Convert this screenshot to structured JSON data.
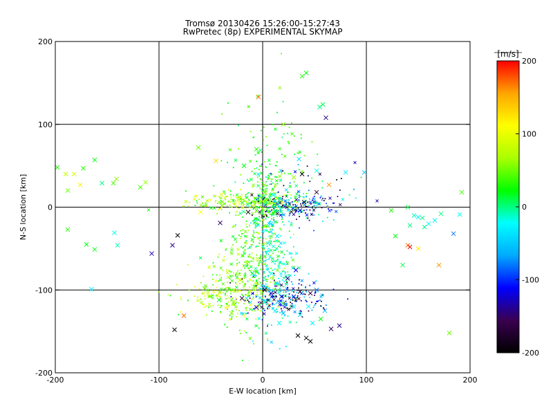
{
  "chart_data": {
    "type": "scatter",
    "title": "Tromsø 20130426 15:26:00-15:27:43",
    "subtitle": "RwPretec (8p) EXPERIMENTAL SKYMAP",
    "xlabel": "E-W location [km]",
    "ylabel": "N-S location [km]",
    "xlim": [
      -200,
      200
    ],
    "ylim": [
      -200,
      200
    ],
    "xticks": [
      "-200",
      "-100",
      "0",
      "100",
      "200"
    ],
    "yticks": [
      "-200",
      "-100",
      "0",
      "100",
      "200"
    ],
    "grid_lines_x": [
      -100,
      0,
      100
    ],
    "grid_lines_y": [
      -100,
      0,
      100
    ],
    "grid": true,
    "colorbar": {
      "label": "[m/s]",
      "range": [
        -200,
        200
      ],
      "ticks": [
        "200",
        "100",
        "0",
        "-100",
        "-200"
      ],
      "colormap": [
        "#000000",
        "#3a0050",
        "#0000ff",
        "#00aaff",
        "#00ffff",
        "#00ff00",
        "#aaff00",
        "#ffff00",
        "#ffa500",
        "#ff0000"
      ]
    },
    "markers": {
      "cross": "measured drift (large x)",
      "dot": "measured drift (small point)"
    },
    "points_large": [
      {
        "x": -198,
        "y": 48,
        "v": 30
      },
      {
        "x": -190,
        "y": 40,
        "v": 80
      },
      {
        "x": -182,
        "y": 40,
        "v": 90
      },
      {
        "x": -176,
        "y": 27,
        "v": 120
      },
      {
        "x": -173,
        "y": 47,
        "v": 30
      },
      {
        "x": -188,
        "y": 20,
        "v": 50
      },
      {
        "x": -162,
        "y": 57,
        "v": 20
      },
      {
        "x": -155,
        "y": 29,
        "v": 0
      },
      {
        "x": -144,
        "y": 29,
        "v": 40
      },
      {
        "x": -141,
        "y": 34,
        "v": 60
      },
      {
        "x": -118,
        "y": 24,
        "v": 40
      },
      {
        "x": -113,
        "y": 30,
        "v": 60
      },
      {
        "x": -188,
        "y": -27,
        "v": 30
      },
      {
        "x": -170,
        "y": -45,
        "v": 20
      },
      {
        "x": -162,
        "y": -51,
        "v": 20
      },
      {
        "x": -143,
        "y": -31,
        "v": -20
      },
      {
        "x": -140,
        "y": -46,
        "v": -10
      },
      {
        "x": -165,
        "y": -99,
        "v": -30
      },
      {
        "x": -107,
        "y": -56,
        "v": -130
      },
      {
        "x": -87,
        "y": -46,
        "v": -140
      },
      {
        "x": -82,
        "y": -34,
        "v": -200
      },
      {
        "x": -76,
        "y": -131,
        "v": 170
      },
      {
        "x": -85,
        "y": -148,
        "v": -200
      },
      {
        "x": -62,
        "y": 72,
        "v": 50
      },
      {
        "x": -45,
        "y": 56,
        "v": 130
      },
      {
        "x": -40,
        "y": 15,
        "v": 100
      },
      {
        "x": -60,
        "y": -6,
        "v": 110
      },
      {
        "x": -41,
        "y": -19,
        "v": -150
      },
      {
        "x": -18,
        "y": 50,
        "v": 20
      },
      {
        "x": -6,
        "y": 70,
        "v": 30
      },
      {
        "x": -4,
        "y": 133,
        "v": 170
      },
      {
        "x": 20,
        "y": 100,
        "v": 60
      },
      {
        "x": 38,
        "y": 158,
        "v": 30
      },
      {
        "x": 42,
        "y": 162,
        "v": 20
      },
      {
        "x": 55,
        "y": 121,
        "v": 0
      },
      {
        "x": 58,
        "y": 124,
        "v": 10
      },
      {
        "x": 61,
        "y": 108,
        "v": -140
      },
      {
        "x": 35,
        "y": 58,
        "v": -40
      },
      {
        "x": 52,
        "y": 44,
        "v": -20
      },
      {
        "x": 38,
        "y": 40,
        "v": -200
      },
      {
        "x": 30,
        "y": 36,
        "v": 60
      },
      {
        "x": 52,
        "y": 18,
        "v": -170
      },
      {
        "x": 64,
        "y": 27,
        "v": 160
      },
      {
        "x": 40,
        "y": 6,
        "v": -200
      },
      {
        "x": 36,
        "y": -4,
        "v": -120
      },
      {
        "x": 80,
        "y": 42,
        "v": -30
      },
      {
        "x": 8,
        "y": -20,
        "v": -40
      },
      {
        "x": -14,
        "y": -6,
        "v": -200
      },
      {
        "x": 14,
        "y": -35,
        "v": -30
      },
      {
        "x": 32,
        "y": -76,
        "v": -110
      },
      {
        "x": 24,
        "y": -86,
        "v": -140
      },
      {
        "x": 2,
        "y": -115,
        "v": -10
      },
      {
        "x": 12,
        "y": -125,
        "v": -30
      },
      {
        "x": 20,
        "y": -128,
        "v": -60
      },
      {
        "x": 30,
        "y": -108,
        "v": -120
      },
      {
        "x": 36,
        "y": -102,
        "v": -190
      },
      {
        "x": 46,
        "y": -104,
        "v": -160
      },
      {
        "x": 52,
        "y": -100,
        "v": -80
      },
      {
        "x": 18,
        "y": -108,
        "v": -100
      },
      {
        "x": 8,
        "y": -104,
        "v": -130
      },
      {
        "x": -6,
        "y": -121,
        "v": -140
      },
      {
        "x": -20,
        "y": -110,
        "v": -160
      },
      {
        "x": -30,
        "y": -128,
        "v": 60
      },
      {
        "x": -42,
        "y": -112,
        "v": 20
      },
      {
        "x": 2,
        "y": -100,
        "v": -170
      },
      {
        "x": 16,
        "y": -140,
        "v": -20
      },
      {
        "x": 30,
        "y": -120,
        "v": -30
      },
      {
        "x": 44,
        "y": -120,
        "v": -20
      },
      {
        "x": 36,
        "y": -130,
        "v": -40
      },
      {
        "x": 48,
        "y": -140,
        "v": -30
      },
      {
        "x": 56,
        "y": -135,
        "v": 20
      },
      {
        "x": 34,
        "y": -155,
        "v": -200
      },
      {
        "x": 42,
        "y": -158,
        "v": -200
      },
      {
        "x": 46,
        "y": -162,
        "v": -200
      },
      {
        "x": 66,
        "y": -147,
        "v": -150
      },
      {
        "x": 74,
        "y": -143,
        "v": -140
      },
      {
        "x": 60,
        "y": -125,
        "v": -60
      },
      {
        "x": -10,
        "y": -80,
        "v": 10
      },
      {
        "x": -22,
        "y": -88,
        "v": 80
      },
      {
        "x": -56,
        "y": -98,
        "v": 50
      },
      {
        "x": 98,
        "y": 42,
        "v": -50
      },
      {
        "x": 124,
        "y": -4,
        "v": 30
      },
      {
        "x": 128,
        "y": -35,
        "v": 20
      },
      {
        "x": 140,
        "y": 0,
        "v": 10
      },
      {
        "x": 146,
        "y": -10,
        "v": -10
      },
      {
        "x": 150,
        "y": -12,
        "v": -30
      },
      {
        "x": 154,
        "y": -13,
        "v": 0
      },
      {
        "x": 142,
        "y": -22,
        "v": 0
      },
      {
        "x": 156,
        "y": -24,
        "v": 0
      },
      {
        "x": 160,
        "y": -20,
        "v": -20
      },
      {
        "x": 166,
        "y": -16,
        "v": -30
      },
      {
        "x": 172,
        "y": -8,
        "v": 0
      },
      {
        "x": 140,
        "y": -46,
        "v": 170
      },
      {
        "x": 142,
        "y": -48,
        "v": 200
      },
      {
        "x": 150,
        "y": -50,
        "v": 120
      },
      {
        "x": 184,
        "y": -32,
        "v": -80
      },
      {
        "x": 190,
        "y": -9,
        "v": -20
      },
      {
        "x": 192,
        "y": 18,
        "v": 40
      },
      {
        "x": 180,
        "y": -152,
        "v": 50
      },
      {
        "x": 135,
        "y": -70,
        "v": 10
      },
      {
        "x": 170,
        "y": -70,
        "v": 160
      }
    ],
    "clusters": [
      {
        "cx": -15,
        "cy": 6,
        "sx": 28,
        "sy": 6,
        "n": 230,
        "vmin": 20,
        "vmax": 110
      },
      {
        "cx": 2,
        "cy": 8,
        "sx": 10,
        "sy": 22,
        "n": 200,
        "vmin": -10,
        "vmax": 60
      },
      {
        "cx": 28,
        "cy": 2,
        "sx": 20,
        "sy": 8,
        "n": 180,
        "vmin": -200,
        "vmax": 10
      },
      {
        "cx": -12,
        "cy": -75,
        "sx": 16,
        "sy": 35,
        "n": 330,
        "vmin": 10,
        "vmax": 90
      },
      {
        "cx": 10,
        "cy": -70,
        "sx": 12,
        "sy": 38,
        "n": 230,
        "vmin": -50,
        "vmax": 10
      },
      {
        "cx": 22,
        "cy": -110,
        "sx": 22,
        "sy": 12,
        "n": 180,
        "vmin": -200,
        "vmax": -30
      },
      {
        "cx": -35,
        "cy": -110,
        "sx": 22,
        "sy": 10,
        "n": 140,
        "vmin": 20,
        "vmax": 110
      },
      {
        "cx": 10,
        "cy": 60,
        "sx": 22,
        "sy": 35,
        "n": 90,
        "vmin": 0,
        "vmax": 60
      },
      {
        "cx": 45,
        "cy": 20,
        "sx": 30,
        "sy": 22,
        "n": 60,
        "vmin": -200,
        "vmax": 20
      }
    ]
  }
}
